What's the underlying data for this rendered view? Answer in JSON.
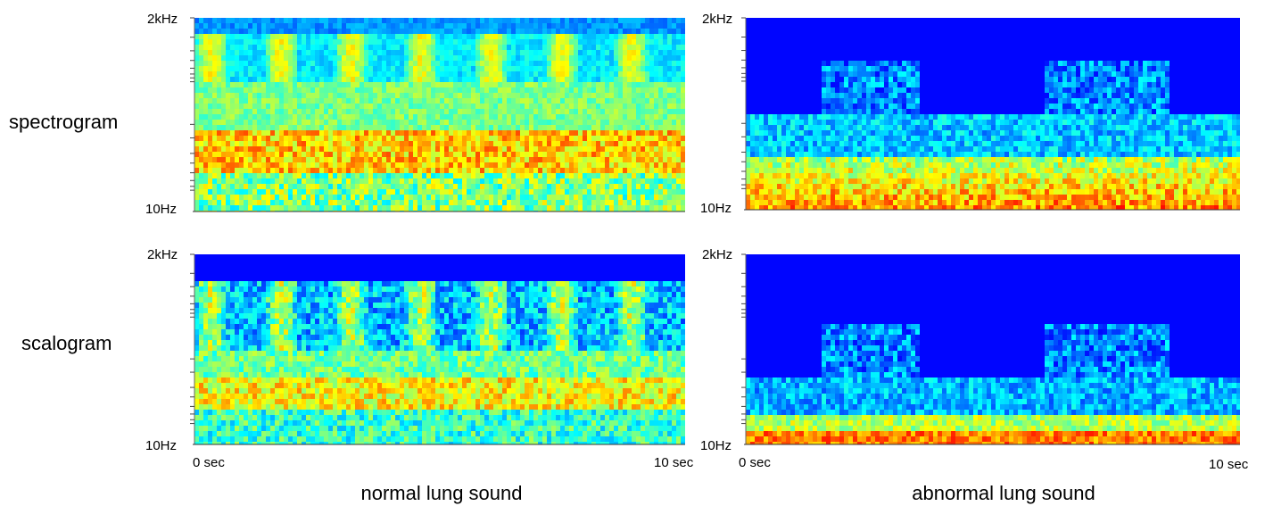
{
  "row_labels": [
    "spectrogram",
    "scalogram"
  ],
  "panels": [
    {
      "kind": "normal-spectrogram",
      "y_top": "2kHz",
      "y_bottom": "10Hz"
    },
    {
      "kind": "abnormal-spectrogram",
      "y_top": "2kHz",
      "y_bottom": "10Hz"
    },
    {
      "kind": "normal-scalogram",
      "y_top": "2kHz",
      "y_bottom": "10Hz",
      "x_start": "0 sec",
      "x_end": "10 sec"
    },
    {
      "kind": "abnormal-scalogram",
      "y_top": "2kHz",
      "y_bottom": "10Hz",
      "x_start": "0 sec",
      "x_end": "10 sec"
    }
  ],
  "captions": [
    "normal lung sound",
    "abnormal lung sound"
  ]
}
